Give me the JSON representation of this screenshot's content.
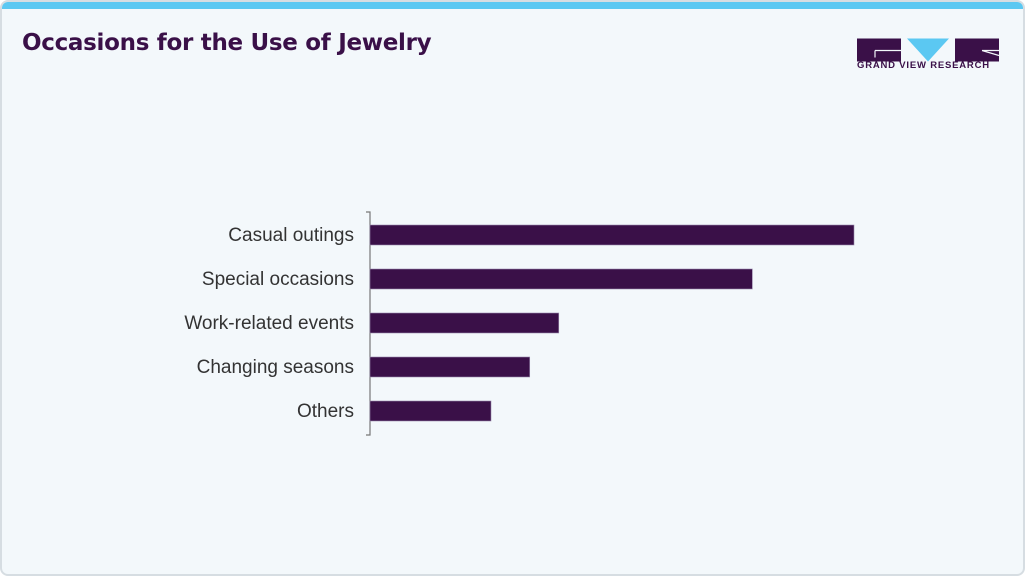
{
  "header": {
    "title": "Occasions for the Use of Jewelry"
  },
  "logo": {
    "text": "GRAND VIEW RESEARCH",
    "colors": {
      "primary": "#3a1048",
      "accent": "#5bc8f2"
    }
  },
  "chart_data": {
    "type": "bar",
    "orientation": "horizontal",
    "title": "Occasions for the Use of Jewelry",
    "categories": [
      "Casual outings",
      "Special occasions",
      "Work-related events",
      "Changing seasons",
      "Others"
    ],
    "values": [
      100,
      79,
      39,
      33,
      25
    ],
    "value_unit": "relative (no axis values shown)",
    "xlabel": "",
    "ylabel": "",
    "grid": false,
    "legend": "none",
    "bar_color": "#3a1048"
  }
}
